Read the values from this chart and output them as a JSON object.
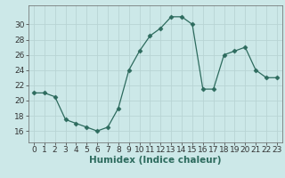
{
  "x": [
    0,
    1,
    2,
    3,
    4,
    5,
    6,
    7,
    8,
    9,
    10,
    11,
    12,
    13,
    14,
    15,
    16,
    17,
    18,
    19,
    20,
    21,
    22,
    23
  ],
  "y": [
    21,
    21,
    20.5,
    17.5,
    17,
    16.5,
    16,
    16.5,
    19,
    24,
    26.5,
    28.5,
    29.5,
    31,
    31,
    30,
    21.5,
    21.5,
    26,
    26.5,
    27,
    24,
    23,
    23
  ],
  "line_color": "#2d6b5e",
  "marker": "D",
  "marker_size": 2.5,
  "bg_color": "#cce8e8",
  "grid_color": "#b8d4d4",
  "xlabel": "Humidex (Indice chaleur)",
  "xlabel_fontsize": 7.5,
  "tick_fontsize": 6.5,
  "ylim": [
    14.5,
    32.5
  ],
  "yticks": [
    16,
    18,
    20,
    22,
    24,
    26,
    28,
    30
  ],
  "xlim": [
    -0.5,
    23.5
  ],
  "xticks": [
    0,
    1,
    2,
    3,
    4,
    5,
    6,
    7,
    8,
    9,
    10,
    11,
    12,
    13,
    14,
    15,
    16,
    17,
    18,
    19,
    20,
    21,
    22,
    23
  ]
}
